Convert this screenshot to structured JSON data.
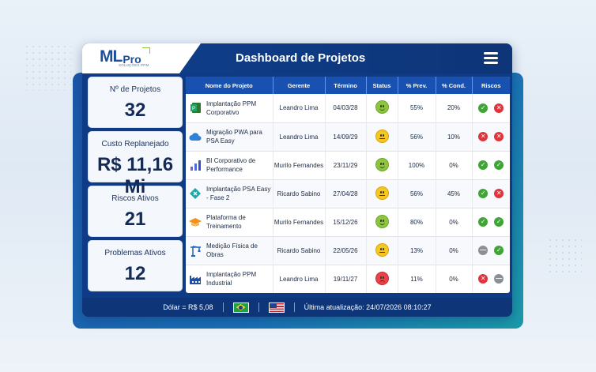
{
  "brand": {
    "logo_main": "ML",
    "logo_pro": "Pro",
    "logo_sub": "SOLUÇÕES PPM"
  },
  "header": {
    "title": "Dashboard de Projetos"
  },
  "cards": [
    {
      "label": "Nº de Projetos",
      "value": "32"
    },
    {
      "label": "Custo Replanejado",
      "value": "R$ 11,16 Mi"
    },
    {
      "label": "Riscos Ativos",
      "value": "21"
    },
    {
      "label": "Problemas Ativos",
      "value": "12"
    }
  ],
  "table": {
    "headers": [
      "Nome do Projeto",
      "Gerente",
      "Término",
      "Status",
      "% Prev.",
      "% Cond.",
      "Riscos"
    ],
    "rows": [
      {
        "name": "Implantação PPM Corporativo",
        "icon": "project-icon",
        "manager": "Leandro Lima",
        "end": "04/03/28",
        "status": "ok",
        "prev": "55%",
        "cond": "20%",
        "risks": [
          "g",
          "r"
        ]
      },
      {
        "name": "Migração PWA para PSA Easy",
        "icon": "cloud-icon",
        "manager": "Leandro Lima",
        "end": "14/09/29",
        "status": "mid",
        "prev": "56%",
        "cond": "10%",
        "risks": [
          "r",
          "r"
        ]
      },
      {
        "name": "BI Corporativo de Performance",
        "icon": "bar-chart-icon",
        "manager": "Murilo Fernandes",
        "end": "23/11/29",
        "status": "ok",
        "prev": "100%",
        "cond": "0%",
        "risks": [
          "g",
          "g"
        ]
      },
      {
        "name": "Implantação PSA Easy - Fase 2",
        "icon": "diamond-icon",
        "manager": "Ricardo Sabino",
        "end": "27/04/28",
        "status": "mid",
        "prev": "56%",
        "cond": "45%",
        "risks": [
          "g",
          "r"
        ]
      },
      {
        "name": "Plataforma de Treinamento",
        "icon": "graduation-cap-icon",
        "manager": "Murilo Fernandes",
        "end": "15/12/26",
        "status": "ok",
        "prev": "80%",
        "cond": "0%",
        "risks": [
          "g",
          "g"
        ]
      },
      {
        "name": "Medição Física de Obras",
        "icon": "crane-icon",
        "manager": "Ricardo Sabino",
        "end": "22/05/26",
        "status": "mid",
        "prev": "13%",
        "cond": "0%",
        "risks": [
          "n",
          "g"
        ]
      },
      {
        "name": "Implantação PPM Industrial",
        "icon": "factory-icon",
        "manager": "Leandro Lima",
        "end": "19/11/27",
        "status": "bad",
        "prev": "11%",
        "cond": "0%",
        "risks": [
          "r",
          "n"
        ]
      }
    ]
  },
  "footer": {
    "dollar": "Dólar = R$ 5,08",
    "updated": "Última atualização: 24/07/2026 08:10:27"
  }
}
